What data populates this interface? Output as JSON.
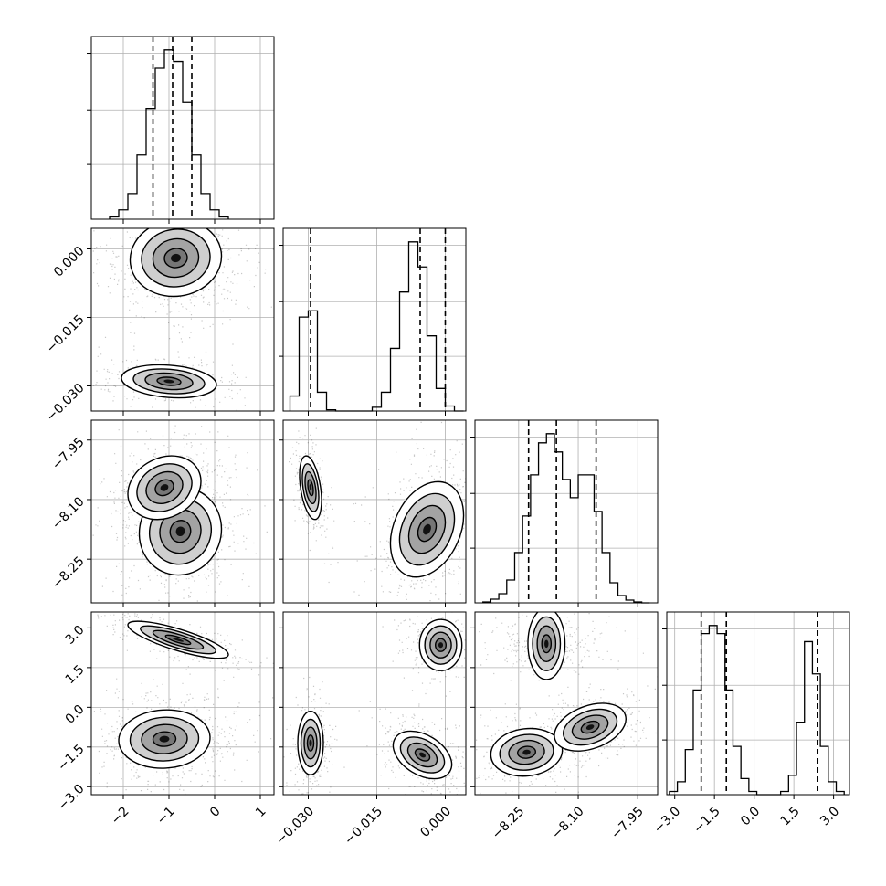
{
  "chart_data": {
    "type": "corner",
    "parameters": [
      {
        "index": 0,
        "range": [
          -2.7,
          1.3
        ],
        "ticks": [
          -2,
          -1,
          0,
          1
        ],
        "tick_labels": [
          "−2",
          "−1",
          "0",
          "1"
        ]
      },
      {
        "index": 1,
        "range": [
          -0.0355,
          0.0045
        ],
        "ticks": [
          -0.03,
          -0.015,
          0.0
        ],
        "tick_labels": [
          "−0.030",
          "−0.015",
          "0.000"
        ]
      },
      {
        "index": 2,
        "range": [
          -8.36,
          -7.9
        ],
        "ticks": [
          -8.25,
          -8.1,
          -7.95
        ],
        "tick_labels": [
          "−8.25",
          "−8.10",
          "−7.95"
        ]
      },
      {
        "index": 3,
        "range": [
          -3.3,
          3.6
        ],
        "ticks": [
          -3.0,
          -1.5,
          0.0,
          1.5,
          3.0
        ],
        "tick_labels": [
          "−3.0",
          "−1.5",
          "0.0",
          "1.5",
          "3.0"
        ]
      }
    ],
    "diagonal_histograms": [
      {
        "param": 0,
        "bin_edges": [
          -2.3,
          -2.1,
          -1.9,
          -1.7,
          -1.5,
          -1.3,
          -1.1,
          -0.9,
          -0.7,
          -0.5,
          -0.3,
          -0.1,
          0.1,
          0.3
        ],
        "counts": [
          2,
          8,
          22,
          55,
          95,
          130,
          145,
          135,
          100,
          55,
          22,
          8,
          2
        ],
        "quantiles": [
          -1.35,
          -0.92,
          -0.5
        ]
      },
      {
        "param": 1,
        "bin_edges": [
          -0.034,
          -0.032,
          -0.03,
          -0.028,
          -0.026,
          -0.024,
          -0.022,
          -0.02,
          -0.018,
          -0.016,
          -0.014,
          -0.012,
          -0.01,
          -0.008,
          -0.006,
          -0.004,
          -0.002,
          0.0,
          0.002,
          0.004
        ],
        "counts": [
          12,
          75,
          80,
          15,
          1,
          0,
          0,
          0,
          0,
          3,
          15,
          50,
          95,
          135,
          115,
          60,
          18,
          4,
          0
        ],
        "quantiles": [
          -0.0295,
          -0.0055,
          0.0
        ]
      },
      {
        "param": 2,
        "bin_edges": [
          -8.34,
          -8.32,
          -8.3,
          -8.28,
          -8.26,
          -8.24,
          -8.22,
          -8.2,
          -8.18,
          -8.16,
          -8.14,
          -8.12,
          -8.1,
          -8.08,
          -8.06,
          -8.04,
          -8.02,
          -8.0,
          -7.98,
          -7.96,
          -7.94,
          -7.92
        ],
        "counts": [
          1,
          4,
          10,
          25,
          55,
          95,
          140,
          175,
          185,
          165,
          135,
          115,
          140,
          140,
          100,
          55,
          22,
          8,
          3,
          1,
          0
        ],
        "quantiles": [
          -8.225,
          -8.155,
          -8.055
        ]
      },
      {
        "param": 3,
        "bin_edges": [
          -3.2,
          -2.9,
          -2.6,
          -2.3,
          -2.0,
          -1.7,
          -1.4,
          -1.1,
          -0.8,
          -0.5,
          -0.2,
          0.1,
          0.4,
          0.7,
          1.0,
          1.3,
          1.6,
          1.9,
          2.2,
          2.5,
          2.8,
          3.1,
          3.4
        ],
        "counts": [
          2,
          8,
          28,
          65,
          100,
          105,
          100,
          65,
          30,
          10,
          2,
          0,
          0,
          0,
          2,
          12,
          45,
          95,
          75,
          30,
          8,
          2
        ],
        "quantiles": [
          -2.0,
          -1.05,
          2.4
        ]
      }
    ],
    "pair_panels": [
      {
        "x_param": 0,
        "y_param": 1,
        "modes": [
          {
            "mx": -0.85,
            "my": -0.002,
            "sx": 0.5,
            "sy": 0.0042,
            "rho": 0.05,
            "w": 0.7
          },
          {
            "mx": -1.0,
            "my": -0.029,
            "sx": 0.52,
            "sy": 0.0018,
            "rho": -0.2,
            "w": 0.3
          }
        ]
      },
      {
        "x_param": 0,
        "y_param": 2,
        "modes": [
          {
            "mx": -0.75,
            "my": -8.18,
            "sx": 0.45,
            "sy": 0.055,
            "rho": 0.05,
            "w": 0.6
          },
          {
            "mx": -1.1,
            "my": -8.07,
            "sx": 0.4,
            "sy": 0.04,
            "rho": 0.2,
            "w": 0.4
          }
        ]
      },
      {
        "x_param": 0,
        "y_param": 3,
        "modes": [
          {
            "mx": -0.8,
            "my": 2.55,
            "sx": 0.55,
            "sy": 0.35,
            "rho": -0.8,
            "w": 0.35
          },
          {
            "mx": -1.1,
            "my": -1.2,
            "sx": 0.5,
            "sy": 0.55,
            "rho": 0.05,
            "w": 0.65
          }
        ]
      },
      {
        "x_param": 1,
        "y_param": 2,
        "modes": [
          {
            "mx": -0.0295,
            "my": -8.07,
            "sx": 0.0012,
            "sy": 0.04,
            "rho": -0.4,
            "w": 0.3
          },
          {
            "mx": -0.004,
            "my": -8.175,
            "sx": 0.004,
            "sy": 0.06,
            "rho": 0.3,
            "w": 0.7
          }
        ]
      },
      {
        "x_param": 1,
        "y_param": 3,
        "modes": [
          {
            "mx": -0.001,
            "my": 2.35,
            "sx": 0.0028,
            "sy": 0.4,
            "rho": 0.0,
            "w": 0.3
          },
          {
            "mx": -0.0295,
            "my": -1.35,
            "sx": 0.0014,
            "sy": 0.6,
            "rho": 0.0,
            "w": 0.25
          },
          {
            "mx": -0.005,
            "my": -1.8,
            "sx": 0.0032,
            "sy": 0.45,
            "rho": -0.4,
            "w": 0.45
          }
        ]
      },
      {
        "x_param": 2,
        "y_param": 3,
        "modes": [
          {
            "mx": -8.18,
            "my": 2.4,
            "sx": 0.045,
            "sy": 0.35,
            "rho": 0.0,
            "w": 0.3
          },
          {
            "mx": -8.23,
            "my": -1.7,
            "sx": 0.045,
            "sy": 0.45,
            "rho": 0.1,
            "w": 0.35
          },
          {
            "mx": -8.07,
            "my": -0.75,
            "sx": 0.045,
            "sy": 0.45,
            "rho": 0.35,
            "w": 0.35
          }
        ]
      }
    ],
    "contour_levels_sigma": [
      0.5,
      1.0,
      1.5,
      2.0
    ],
    "grid": true,
    "legend": "none"
  }
}
